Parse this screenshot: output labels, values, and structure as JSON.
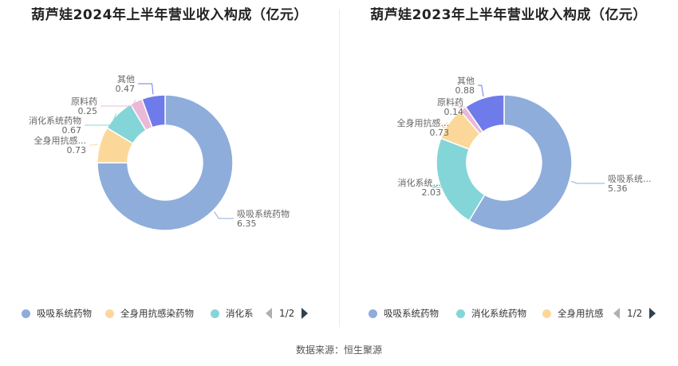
{
  "source": "数据来源：恒生聚源",
  "chart_data": [
    {
      "type": "pie",
      "title": "葫芦娃2024年上半年营业收入构成（亿元）",
      "slices": [
        {
          "name": "吸吸系统药物",
          "value": 6.35,
          "label_name": "吸吸系统药物",
          "label_value": "6.35",
          "color": "#8EADDB"
        },
        {
          "name": "全身用抗感染药物",
          "value": 0.73,
          "label_name": "全身用抗感...",
          "label_value": "0.73",
          "color": "#FBD89A"
        },
        {
          "name": "消化系统药物",
          "value": 0.67,
          "label_name": "消化系统药物",
          "label_value": "0.67",
          "color": "#84D5D8"
        },
        {
          "name": "原料药",
          "value": 0.25,
          "label_name": "原料药",
          "label_value": "0.25",
          "color": "#EAB9D8"
        },
        {
          "name": "其他",
          "value": 0.47,
          "label_name": "其他",
          "label_value": "0.47",
          "color": "#6F7AEB"
        }
      ],
      "legend": {
        "items": [
          {
            "label": "吸吸系统药物",
            "color": "#8EADDB"
          },
          {
            "label": "全身用抗感染药物",
            "color": "#FBD89A"
          },
          {
            "label": "消化系",
            "color": "#84D5D8"
          }
        ],
        "page": "1/2"
      }
    },
    {
      "type": "pie",
      "title": "葫芦娃2023年上半年营业收入构成（亿元）",
      "slices": [
        {
          "name": "吸吸系统药物",
          "value": 5.36,
          "label_name": "吸吸系统...",
          "label_value": "5.36",
          "color": "#8EADDB"
        },
        {
          "name": "消化系统药物",
          "value": 2.03,
          "label_name": "消化系统...",
          "label_value": "2.03",
          "color": "#84D5D8"
        },
        {
          "name": "全身用抗感染药物",
          "value": 0.73,
          "label_name": "全身用抗感...",
          "label_value": "0.73",
          "color": "#FBD89A"
        },
        {
          "name": "原料药",
          "value": 0.14,
          "label_name": "原料药",
          "label_value": "0.14",
          "color": "#EAB9D8"
        },
        {
          "name": "其他",
          "value": 0.88,
          "label_name": "其他",
          "label_value": "0.88",
          "color": "#6F7AEB"
        }
      ],
      "legend": {
        "items": [
          {
            "label": "吸吸系统药物",
            "color": "#8EADDB"
          },
          {
            "label": "消化系统药物",
            "color": "#84D5D8"
          },
          {
            "label": "全身用抗感",
            "color": "#FBD89A"
          }
        ],
        "page": "1/2"
      }
    }
  ]
}
